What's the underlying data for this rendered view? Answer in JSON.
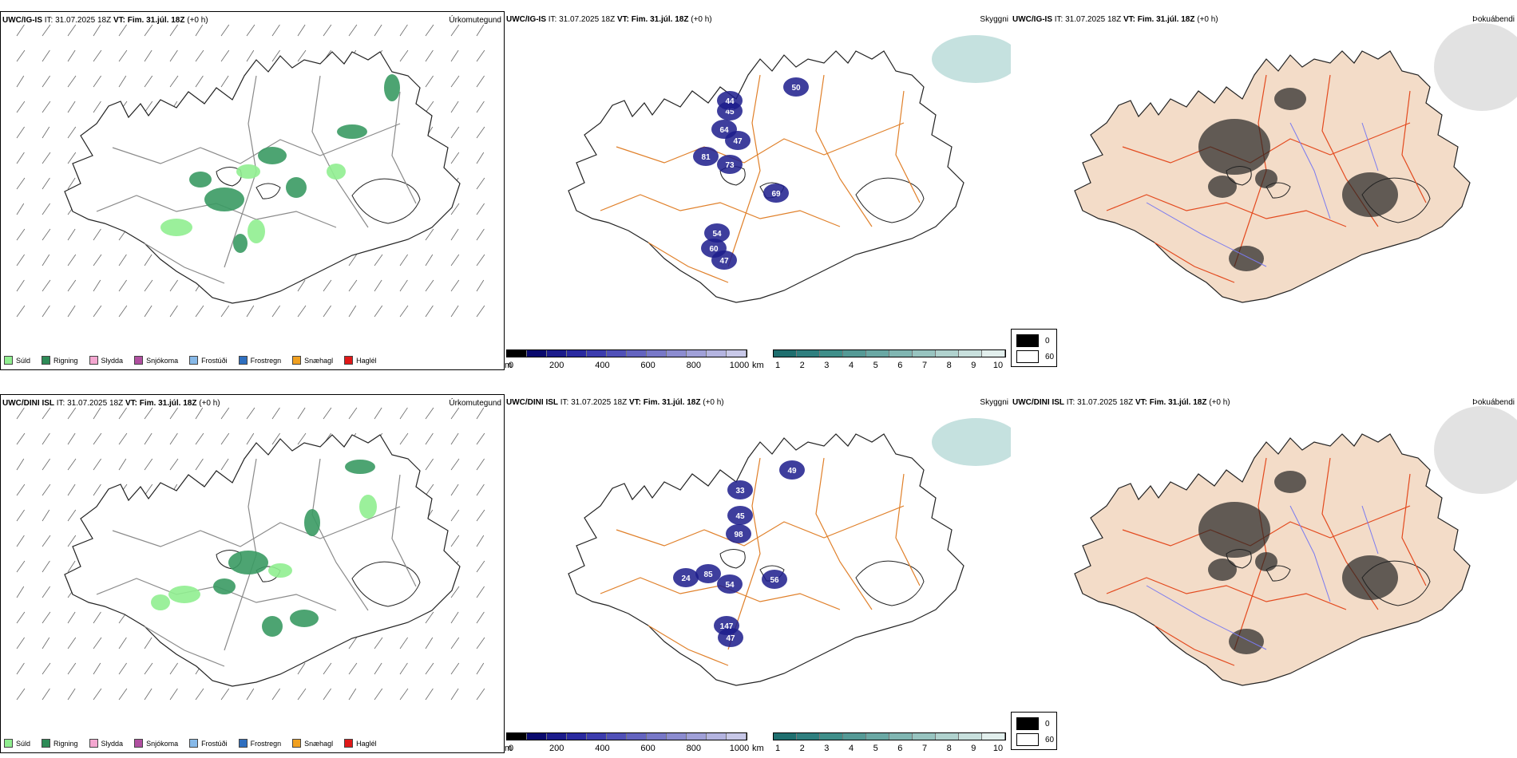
{
  "rows": [
    {
      "model": "UWC/IG-IS",
      "it_label": "IT:",
      "it_value": "31.07.2025 18Z",
      "vt_label": "VT:",
      "vt_value": "Fim. 31.júl. 18Z",
      "lead": "(+0 h)",
      "panel_titles": [
        "Úrkomutegund",
        "Skyggni",
        "Þokuábendi"
      ],
      "precip_labels": [
        {
          "t": "81"
        },
        {
          "t": "73"
        },
        {
          "t": "47"
        },
        {
          "t": "64"
        },
        {
          "t": "45"
        },
        {
          "t": "44"
        },
        {
          "t": "69"
        },
        {
          "t": "54"
        },
        {
          "t": "60"
        },
        {
          "t": "47"
        },
        {
          "t": "50"
        }
      ]
    },
    {
      "model": "UWC/DINI ISL",
      "it_label": "IT:",
      "it_value": "31.07.2025 18Z",
      "vt_label": "VT:",
      "vt_value": "Fim. 31.júl. 18Z",
      "lead": "(+0 h)",
      "panel_titles": [
        "Úrkomutegund",
        "Skyggni",
        "Þokuábendi"
      ],
      "precip_labels": [
        {
          "t": "85"
        },
        {
          "t": "54"
        },
        {
          "t": "98"
        },
        {
          "t": "45"
        },
        {
          "t": "33"
        },
        {
          "t": "47"
        },
        {
          "t": "49"
        },
        {
          "t": "147"
        },
        {
          "t": "56"
        },
        {
          "t": "24"
        }
      ]
    }
  ],
  "precip_legend": [
    {
      "label": "Súld",
      "color": "#90ee90"
    },
    {
      "label": "Rigning",
      "color": "#2e8b57"
    },
    {
      "label": "Slydda",
      "color": "#f4a7d0"
    },
    {
      "label": "Snjókoma",
      "color": "#b04fa0"
    },
    {
      "label": "Frostúði",
      "color": "#87b9e8"
    },
    {
      "label": "Frostregn",
      "color": "#2f6fbf"
    },
    {
      "label": "Snæhagl",
      "color": "#f0a020"
    },
    {
      "label": "Haglél",
      "color": "#e01818"
    }
  ],
  "ceiling_bar": {
    "unit": "m",
    "ticks": [
      "0",
      "200",
      "400",
      "600",
      "800",
      "1000"
    ],
    "colors": [
      "#000000",
      "#0a0a6e",
      "#1c1c8c",
      "#2a2aa0",
      "#3c3cae",
      "#5050b8",
      "#6464c0",
      "#7878c8",
      "#8c8cd0",
      "#a0a0d8",
      "#b4b4e0",
      "#c8c8e8"
    ]
  },
  "visibility_bar": {
    "unit": "km",
    "ticks": [
      "1",
      "2",
      "3",
      "4",
      "5",
      "6",
      "7",
      "8",
      "9",
      "10"
    ],
    "colors": [
      "#1f6f6f",
      "#2f7f7f",
      "#3f8f8a",
      "#559a96",
      "#6aa8a4",
      "#80b6b2",
      "#98c4c0",
      "#b0d2ce",
      "#c8e0dd",
      "#e2efed"
    ]
  },
  "fog_legend": [
    {
      "label": "0",
      "color": "#000000"
    },
    {
      "label": "60",
      "color": "#ffffff"
    }
  ]
}
